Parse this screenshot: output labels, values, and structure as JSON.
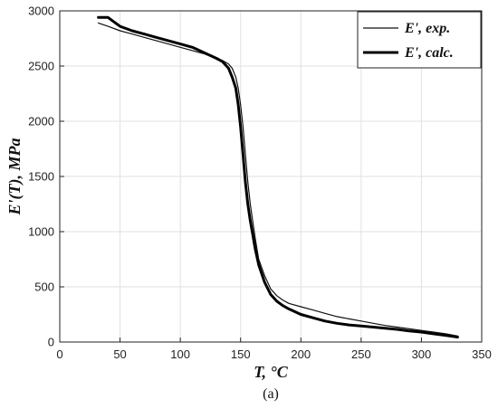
{
  "chart_data": {
    "type": "line",
    "xlabel": "T, °C",
    "ylabel": "E'(T), MPa",
    "caption": "(a)",
    "xlim": [
      0,
      350
    ],
    "ylim": [
      0,
      3000
    ],
    "xticks": [
      0,
      50,
      100,
      150,
      200,
      250,
      300,
      350
    ],
    "yticks": [
      0,
      500,
      1000,
      1500,
      2000,
      2500,
      3000
    ],
    "grid": true,
    "legend_position": "top-right",
    "series": [
      {
        "name": "E', exp.",
        "style": "thin",
        "color": "#111111",
        "x": [
          32,
          40,
          50,
          60,
          70,
          80,
          90,
          100,
          110,
          120,
          130,
          135,
          140,
          143,
          146,
          148,
          150,
          152,
          154,
          156,
          158,
          160,
          162,
          165,
          170,
          175,
          180,
          185,
          190,
          200,
          210,
          220,
          230,
          240,
          250,
          260,
          270,
          280,
          290,
          300,
          310,
          320,
          330
        ],
        "y": [
          2890,
          2860,
          2820,
          2790,
          2760,
          2730,
          2700,
          2670,
          2640,
          2610,
          2570,
          2550,
          2520,
          2480,
          2400,
          2300,
          2150,
          1950,
          1700,
          1450,
          1250,
          1100,
          950,
          750,
          600,
          480,
          420,
          380,
          350,
          320,
          290,
          260,
          230,
          210,
          190,
          170,
          150,
          135,
          120,
          105,
          90,
          75,
          55
        ]
      },
      {
        "name": "E', calc.",
        "style": "thick",
        "color": "#000000",
        "x": [
          32,
          40,
          45,
          50,
          60,
          70,
          80,
          90,
          100,
          110,
          120,
          130,
          135,
          140,
          143,
          146,
          148,
          150,
          152,
          154,
          156,
          158,
          160,
          162,
          165,
          170,
          175,
          180,
          185,
          190,
          200,
          210,
          220,
          230,
          240,
          250,
          260,
          270,
          280,
          290,
          300,
          310,
          320,
          330
        ],
        "y": [
          2940,
          2940,
          2900,
          2860,
          2820,
          2790,
          2760,
          2730,
          2700,
          2670,
          2620,
          2570,
          2540,
          2480,
          2400,
          2300,
          2150,
          1950,
          1700,
          1450,
          1250,
          1100,
          980,
          850,
          700,
          540,
          430,
          370,
          330,
          300,
          250,
          220,
          190,
          170,
          155,
          145,
          135,
          125,
          115,
          100,
          90,
          75,
          60,
          45
        ]
      }
    ]
  }
}
